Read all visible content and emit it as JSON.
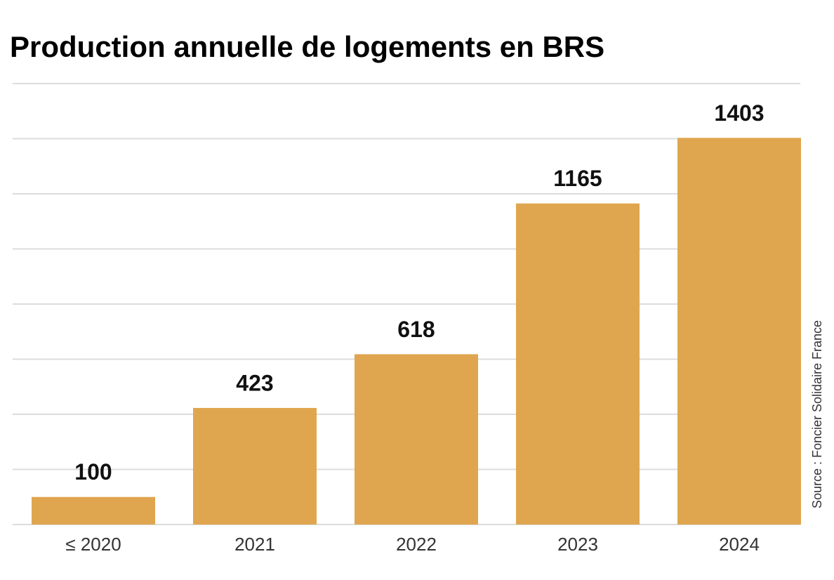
{
  "chart_data": {
    "type": "bar",
    "title": "Production annuelle de logements en BRS",
    "categories": [
      "≤ 2020",
      "2021",
      "2022",
      "2023",
      "2024"
    ],
    "values": [
      100,
      423,
      618,
      1165,
      1403
    ],
    "color": "#e0a64f",
    "ylim": [
      0,
      1600
    ],
    "yticks": [
      0,
      200,
      400,
      600,
      800,
      1000,
      1200,
      1400,
      1600
    ],
    "grid": true,
    "source": "Source : Foncier Solidaire France"
  }
}
